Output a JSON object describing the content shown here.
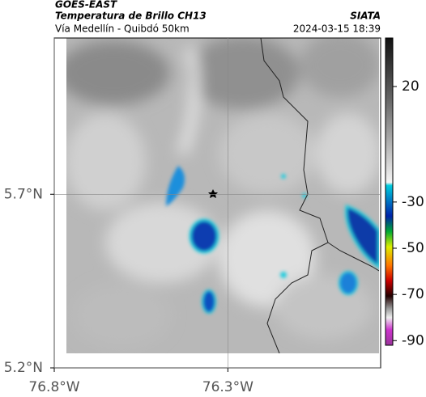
{
  "header": {
    "satellite": "GOES-EAST",
    "product": "Temperatura de Brillo CH13",
    "region": "Vía Medellín - Quibdó 50km",
    "source": "SIATA",
    "datetime": "2024-03-15 18:39"
  },
  "map": {
    "xlim": [
      -76.8,
      -75.86
    ],
    "ylim": [
      5.2,
      6.15
    ],
    "xticks": [
      {
        "value": -76.8,
        "label": "76.8°W"
      },
      {
        "value": -76.3,
        "label": "76.3°W"
      }
    ],
    "yticks": [
      {
        "value": 5.7,
        "label": "5.7°N"
      },
      {
        "value": 5.2,
        "label": "5.2°N"
      }
    ]
  },
  "colorbar": {
    "lim": [
      41,
      -92
    ],
    "ticks": [
      20,
      -30,
      -50,
      -70,
      -90
    ]
  }
}
